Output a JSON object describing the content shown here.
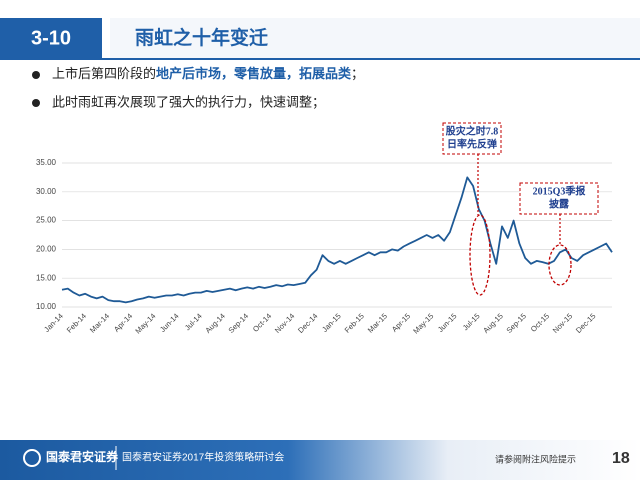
{
  "header": {
    "section": "3-10",
    "title": "雨虹之十年变迁"
  },
  "bullets": [
    [
      "上市后第四阶段的",
      "地产后市场，零售放量，拓展品类",
      "；"
    ],
    [
      "此时雨虹再次展现了强大的执行力，快速调整；"
    ]
  ],
  "chart_data": {
    "type": "line",
    "categories": [
      "Jan-14",
      null,
      null,
      null,
      "Feb-14",
      null,
      null,
      null,
      "Mar-14",
      null,
      null,
      null,
      "Apr-14",
      null,
      null,
      null,
      "May-14",
      null,
      null,
      null,
      "Jun-14",
      null,
      null,
      null,
      "Jul-14",
      null,
      null,
      null,
      "Aug-14",
      null,
      null,
      null,
      "Sep-14",
      null,
      null,
      null,
      "Oct-14",
      null,
      null,
      null,
      "Nov-14",
      null,
      null,
      null,
      "Dec-14",
      null,
      null,
      null,
      "Jan-15",
      null,
      null,
      null,
      "Feb-15",
      null,
      null,
      null,
      "Mar-15",
      null,
      null,
      null,
      "Apr-15",
      null,
      null,
      null,
      "May-15",
      null,
      null,
      null,
      "Jun-15",
      null,
      null,
      null,
      "Jul-15",
      null,
      null,
      null,
      "Aug-15",
      null,
      null,
      null,
      "Sep-15",
      null,
      null,
      null,
      "Oct-15",
      null,
      null,
      null,
      "Nov-15",
      null,
      null,
      null,
      "Dec-15",
      null,
      null,
      null
    ],
    "values": [
      13,
      13.2,
      12.5,
      12,
      12.3,
      11.8,
      11.5,
      11.8,
      11.2,
      11,
      11,
      10.8,
      11,
      11.3,
      11.5,
      11.8,
      11.6,
      11.8,
      12,
      12,
      12.2,
      12,
      12.3,
      12.5,
      12.5,
      12.8,
      12.6,
      12.8,
      13,
      13.2,
      12.9,
      13.2,
      13.4,
      13.2,
      13.5,
      13.3,
      13.5,
      13.8,
      13.6,
      13.9,
      13.8,
      14,
      14.2,
      15.5,
      16.5,
      19,
      18,
      17.5,
      18,
      17.5,
      18,
      18.5,
      19,
      19.5,
      19,
      19.5,
      19.5,
      20,
      19.8,
      20.5,
      21,
      21.5,
      22,
      22.5,
      22,
      22.5,
      21.5,
      23,
      26,
      29,
      32.5,
      31,
      27,
      25,
      21,
      17.5,
      24,
      22,
      25,
      21,
      18.5,
      17.5,
      18,
      17.8,
      17.5,
      18,
      19.5,
      20,
      18.5,
      18,
      19,
      19.5,
      20,
      20.5,
      21,
      19.5
    ],
    "color": "#1f5a96",
    "ylim": [
      10,
      35
    ],
    "yticks": [
      {
        "value": 10,
        "label": "10.00"
      },
      {
        "value": 15,
        "label": "15.00"
      },
      {
        "value": 20,
        "label": "20.00"
      },
      {
        "value": 25,
        "label": "25.00"
      },
      {
        "value": 30,
        "label": "30.00"
      },
      {
        "value": 35,
        "label": "35.00"
      }
    ],
    "grid": true,
    "annotations": [
      [
        "股灾之时7.8",
        "日率先反弹"
      ],
      [
        "2015Q3季报",
        "披露"
      ]
    ]
  },
  "footer": {
    "company": "国泰君安证券",
    "event": "国泰君安证券2017年投资策略研讨会",
    "notice": "请参阅附注风险提示",
    "page": "18"
  }
}
